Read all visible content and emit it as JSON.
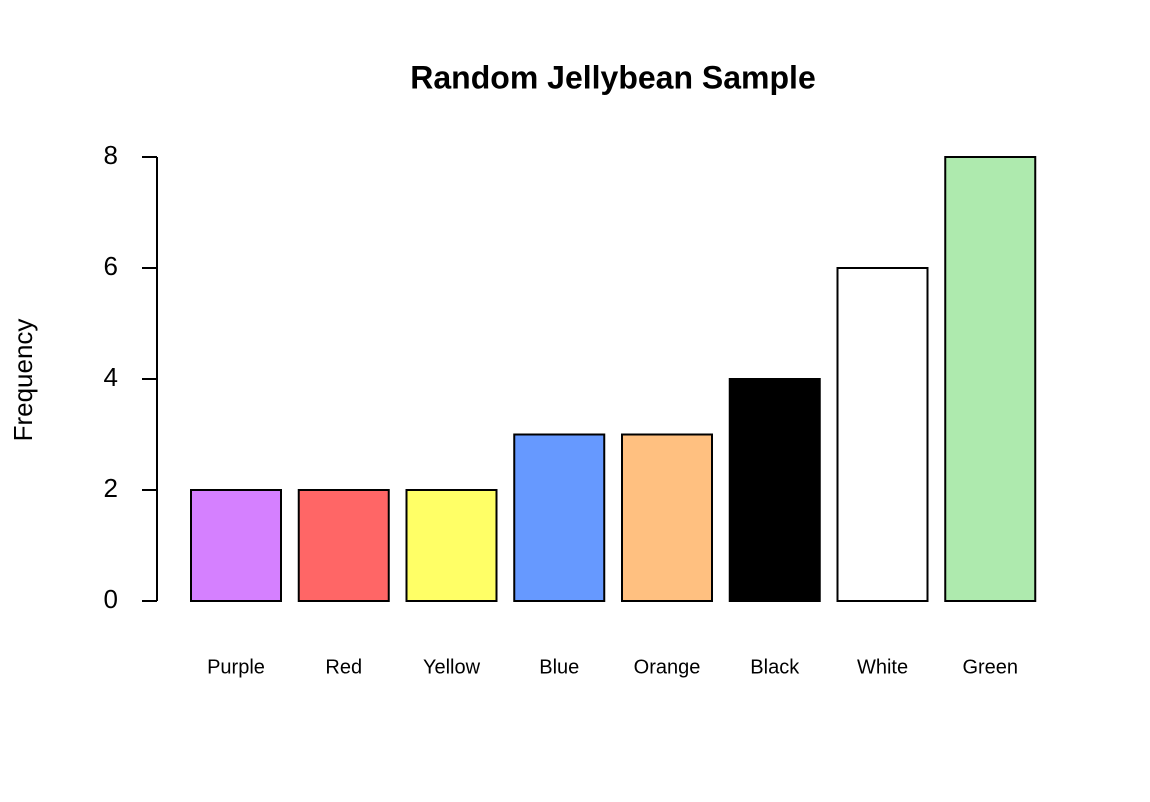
{
  "chart_data": {
    "type": "bar",
    "title": "Random Jellybean Sample",
    "y_label": "Frequency",
    "categories": [
      "Purple",
      "Red",
      "Yellow",
      "Blue",
      "Orange",
      "Black",
      "White",
      "Green"
    ],
    "values": [
      2,
      2,
      2,
      3,
      3,
      4,
      6,
      8
    ],
    "colors": [
      "#d580ff",
      "#ff6666",
      "#ffff66",
      "#6699ff",
      "#ffc080",
      "#000000",
      "#ffffff",
      "#aeeaae"
    ],
    "ylim": [
      0,
      8
    ],
    "yticks": [
      0,
      2,
      4,
      6,
      8
    ],
    "grid": false
  }
}
